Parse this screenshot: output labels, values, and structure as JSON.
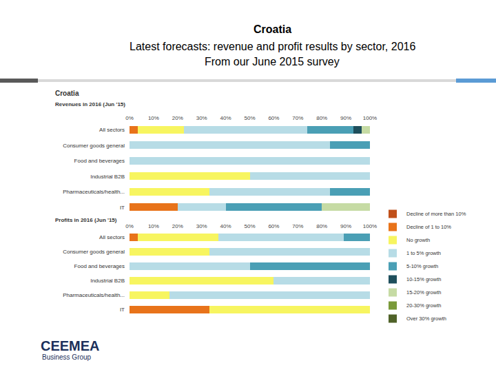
{
  "slide": {
    "title": "Croatia",
    "subtitle": [
      "Latest forecasts: revenue and profit results by sector, 2016",
      "From our June 2015 survey"
    ]
  },
  "figure_header": "Croatia",
  "logo": {
    "name": "CEEMEA",
    "tagline": "Business Group"
  },
  "chart_data": [
    {
      "type": "bar",
      "orientation": "horizontal",
      "stacked": true,
      "grid": false,
      "legend": "right",
      "title": "Revenues in 2016 (Jun '15)",
      "categories": [
        "All sectors",
        "Consumer goods general",
        "Food and beverages",
        "Industrial B2B",
        "Pharmaceuticals/health...",
        "IT"
      ],
      "xlim": [
        0,
        100
      ],
      "xticks": [
        {
          "value": 0,
          "label": "0%"
        },
        {
          "value": 10,
          "label": "10%"
        },
        {
          "value": 20,
          "label": "20%"
        },
        {
          "value": 30,
          "label": "30%"
        },
        {
          "value": 40,
          "label": "40%"
        },
        {
          "value": 50,
          "label": "50%"
        },
        {
          "value": 60,
          "label": "60%"
        },
        {
          "value": 70,
          "label": "70%"
        },
        {
          "value": 80,
          "label": "80%"
        },
        {
          "value": 90,
          "label": "90%"
        },
        {
          "value": 100,
          "label": "100%"
        }
      ],
      "series": [
        {
          "name": "Decline of more than 10%",
          "color": "#c0501a",
          "values": [
            0,
            0,
            0,
            0,
            0,
            0
          ]
        },
        {
          "name": "Decline of 1 to 10%",
          "color": "#e8731a",
          "values": [
            3.5,
            0,
            0,
            0,
            0,
            20
          ]
        },
        {
          "name": "No growth",
          "color": "#f7f560",
          "values": [
            19,
            0,
            0,
            50,
            33.3,
            0
          ]
        },
        {
          "name": "1 to 5% growth",
          "color": "#b7dce6",
          "values": [
            51.5,
            83.3,
            100,
            50,
            50,
            20
          ]
        },
        {
          "name": "5-10% growth",
          "color": "#4a9fb5",
          "values": [
            19,
            16.7,
            0,
            0,
            16.7,
            40
          ]
        },
        {
          "name": "10-15% growth",
          "color": "#1f4f5c",
          "values": [
            3.5,
            0,
            0,
            0,
            0,
            0
          ]
        },
        {
          "name": "15-20% growth",
          "color": "#c6dba4",
          "values": [
            3.5,
            0,
            0,
            0,
            0,
            20
          ]
        },
        {
          "name": "20-30% growth",
          "color": "#7a9a3a",
          "values": [
            0,
            0,
            0,
            0,
            0,
            0
          ]
        },
        {
          "name": "Over 30% growth",
          "color": "#4f6228",
          "values": [
            0,
            0,
            0,
            0,
            0,
            0
          ]
        }
      ]
    },
    {
      "type": "bar",
      "orientation": "horizontal",
      "stacked": true,
      "grid": false,
      "title": "Profits in 2016 (Jun '15)",
      "categories": [
        "All sectors",
        "Consumer goods general",
        "Food and beverages",
        "Industrial B2B",
        "Pharmaceuticals/health...",
        "IT"
      ],
      "xlim": [
        0,
        100
      ],
      "xticks": [
        {
          "value": 0,
          "label": "0%"
        },
        {
          "value": 10,
          "label": "10%"
        },
        {
          "value": 20,
          "label": "20%"
        },
        {
          "value": 30,
          "label": "30%"
        },
        {
          "value": 40,
          "label": "40%"
        },
        {
          "value": 50,
          "label": "50%"
        },
        {
          "value": 60,
          "label": "60%"
        },
        {
          "value": 70,
          "label": "70%"
        },
        {
          "value": 80,
          "label": "80%"
        },
        {
          "value": 90,
          "label": "90%"
        },
        {
          "value": 100,
          "label": "100%"
        }
      ],
      "series": [
        {
          "name": "Decline of more than 10%",
          "color": "#c0501a",
          "values": [
            0,
            0,
            0,
            0,
            0,
            0
          ]
        },
        {
          "name": "Decline of 1 to 10%",
          "color": "#e8731a",
          "values": [
            3.5,
            0,
            0,
            0,
            0,
            33.3
          ]
        },
        {
          "name": "No growth",
          "color": "#f7f560",
          "values": [
            33.5,
            33.3,
            0,
            60,
            16.7,
            66.7
          ]
        },
        {
          "name": "1 to 5% growth",
          "color": "#b7dce6",
          "values": [
            52,
            66.7,
            50,
            40,
            83.3,
            0
          ]
        },
        {
          "name": "5-10% growth",
          "color": "#4a9fb5",
          "values": [
            11,
            0,
            50,
            0,
            0,
            0
          ]
        },
        {
          "name": "10-15% growth",
          "color": "#1f4f5c",
          "values": [
            0,
            0,
            0,
            0,
            0,
            0
          ]
        },
        {
          "name": "15-20% growth",
          "color": "#c6dba4",
          "values": [
            0,
            0,
            0,
            0,
            0,
            0
          ]
        },
        {
          "name": "20-30% growth",
          "color": "#7a9a3a",
          "values": [
            0,
            0,
            0,
            0,
            0,
            0
          ]
        },
        {
          "name": "Over 30% growth",
          "color": "#4f6228",
          "values": [
            0,
            0,
            0,
            0,
            0,
            0
          ]
        }
      ]
    }
  ]
}
